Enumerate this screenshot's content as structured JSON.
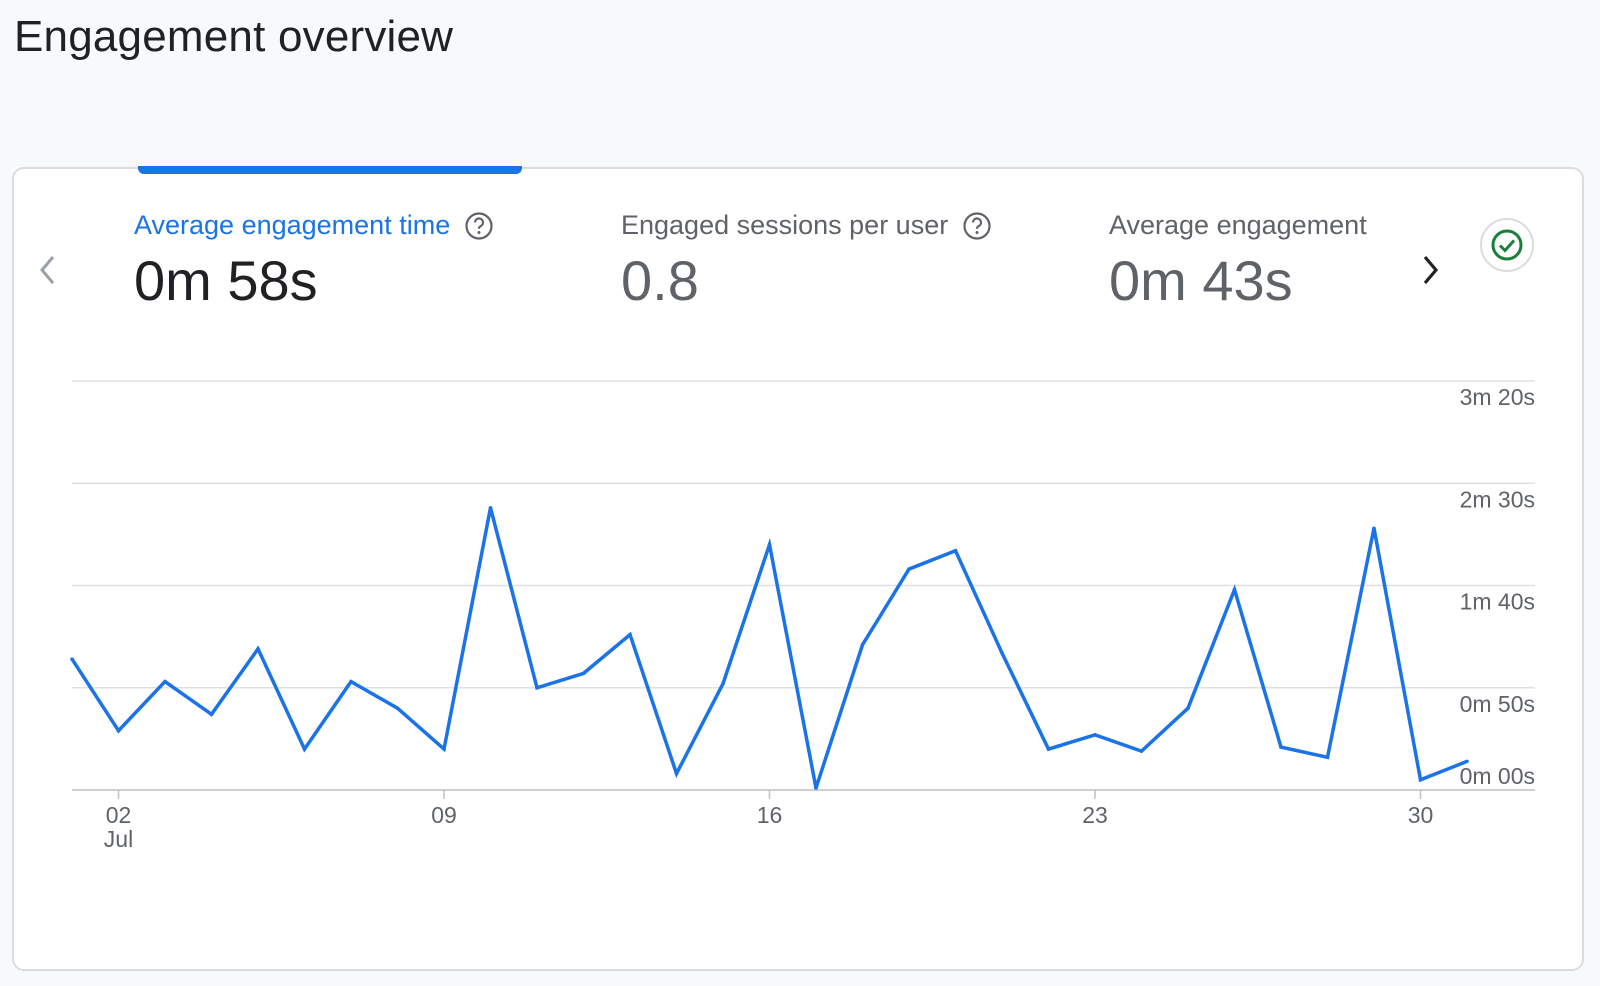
{
  "page": {
    "title": "Engagement overview"
  },
  "metrics": [
    {
      "label": "Average engagement time",
      "value": "0m 58s",
      "active": true
    },
    {
      "label": "Engaged sessions per user",
      "value": "0.8",
      "active": false
    },
    {
      "label": "Average engagement",
      "value": "0m 43s",
      "active": false
    }
  ],
  "colors": {
    "accent": "#1a73e8",
    "line": "#1a73e8",
    "grid": "#e0e0e0",
    "status": "#188038"
  },
  "icons": {
    "prev": "chevron-left-icon",
    "next": "chevron-right-icon",
    "help": "help-circle-icon",
    "status": "check-circle-icon"
  },
  "chart_data": {
    "type": "line",
    "xlabel": "",
    "ylabel": "",
    "x_ticks": [
      {
        "label": "02",
        "sublabel": "Jul",
        "day": 2
      },
      {
        "label": "09",
        "sublabel": "",
        "day": 9
      },
      {
        "label": "16",
        "sublabel": "",
        "day": 16
      },
      {
        "label": "23",
        "sublabel": "",
        "day": 23
      },
      {
        "label": "30",
        "sublabel": "",
        "day": 30
      }
    ],
    "y_ticks": [
      {
        "label": "3m 20s",
        "value": 200
      },
      {
        "label": "2m 30s",
        "value": 150
      },
      {
        "label": "1m 40s",
        "value": 100
      },
      {
        "label": "0m 50s",
        "value": 50
      },
      {
        "label": "0m 00s",
        "value": 0
      }
    ],
    "ylim": [
      0,
      200
    ],
    "grid": true,
    "series": [
      {
        "x": [
          1,
          2,
          3,
          4,
          5,
          6,
          7,
          8,
          9,
          10,
          11,
          12,
          13,
          14,
          15,
          16,
          17,
          18,
          19,
          20,
          21,
          22,
          23,
          24,
          25,
          26,
          27,
          28,
          29,
          30,
          31
        ],
        "values": [
          64,
          29,
          53,
          37,
          69,
          20,
          53,
          40,
          20,
          138,
          50,
          57,
          76,
          8,
          52,
          120,
          1,
          71,
          108,
          117,
          67,
          20,
          27,
          19,
          40,
          98,
          21,
          16,
          128,
          5,
          14
        ]
      }
    ]
  }
}
